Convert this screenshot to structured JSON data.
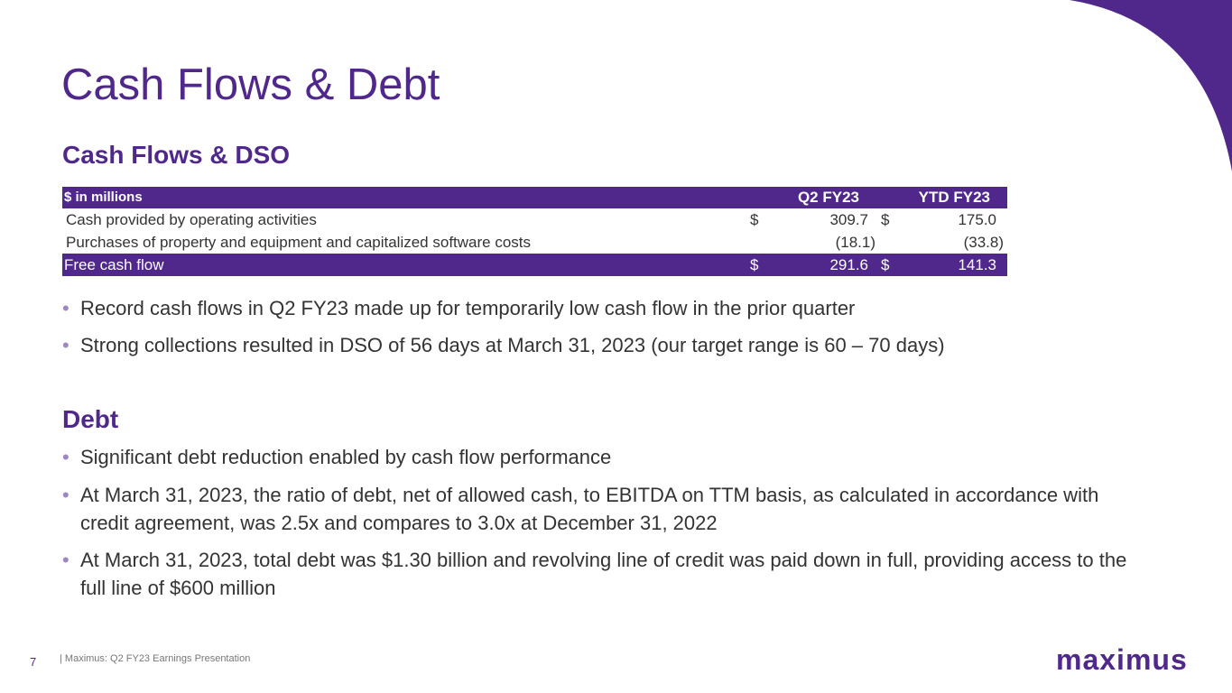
{
  "header": {
    "title": "Cash Flows & Debt"
  },
  "cash_section": {
    "heading": "Cash Flows & DSO",
    "table": {
      "header": [
        "$ in millions",
        "Q2 FY23",
        "YTD FY23"
      ],
      "rows": [
        [
          "Cash provided by operating activities",
          "$",
          "309.7",
          "$",
          "175.0"
        ],
        [
          "Purchases of property and equipment and capitalized software costs",
          "",
          "(18.1)",
          "",
          "(33.8)"
        ],
        [
          "Free cash flow",
          "$",
          "291.6",
          "$",
          "141.3"
        ]
      ]
    },
    "bullets": [
      "Record cash flows in Q2 FY23 made up for temporarily low cash flow in the prior quarter",
      "Strong collections resulted in DSO of 56 days at March 31, 2023 (our target range is 60 – 70 days)"
    ]
  },
  "debt_section": {
    "heading": "Debt",
    "bullets": [
      "Significant debt reduction enabled by cash flow performance",
      "At March 31, 2023, the ratio of debt, net of allowed cash, to EBITDA on TTM basis, as calculated in accordance with credit agreement, was 2.5x and compares to 3.0x at December 31, 2022",
      "At March 31, 2023, total debt was $1.30 billion and revolving line of credit was paid down in full, providing access to the full line of $600 million"
    ]
  },
  "footer": {
    "page_number": "7",
    "text": "|  Maximus: Q2 FY23 Earnings Presentation",
    "logo": "maximus"
  }
}
